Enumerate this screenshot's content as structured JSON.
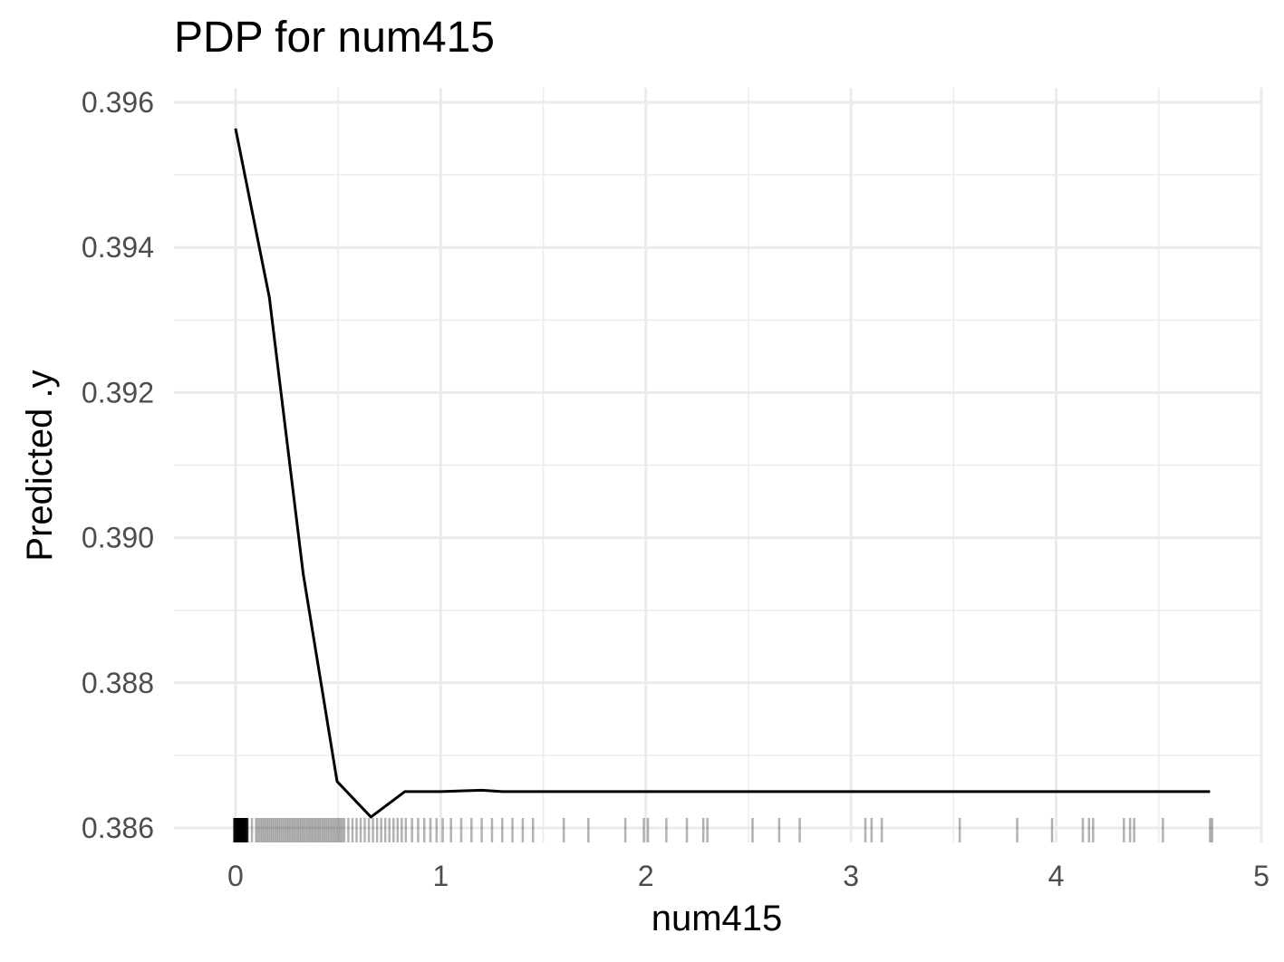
{
  "chart_data": {
    "type": "line",
    "title": "PDP for num415",
    "xlabel": "num415",
    "ylabel": "Predicted .y",
    "xlim": [
      -0.3,
      5.0
    ],
    "ylim": [
      0.3858,
      0.3962
    ],
    "x_ticks": [
      0,
      1,
      2,
      3,
      4,
      5
    ],
    "x_tick_labels": [
      "0",
      "1",
      "2",
      "3",
      "4",
      "5"
    ],
    "y_ticks": [
      0.386,
      0.388,
      0.39,
      0.392,
      0.394,
      0.396
    ],
    "y_tick_labels": [
      "0.386",
      "0.388",
      "0.390",
      "0.392",
      "0.394",
      "0.396"
    ],
    "grid": true,
    "series": [
      {
        "color": "#000000",
        "x": [
          0,
          0.165,
          0.33,
          0.495,
          0.66,
          0.825,
          1.0,
          1.2,
          1.3,
          1.5,
          2.0,
          2.5,
          3.0,
          3.5,
          4.0,
          4.5,
          4.75
        ],
        "y": [
          0.39564,
          0.39331,
          0.3895,
          0.38664,
          0.38615,
          0.3865,
          0.3865,
          0.38652,
          0.3865,
          0.3865,
          0.3865,
          0.3865,
          0.3865,
          0.3865,
          0.3865,
          0.3865,
          0.3865
        ]
      }
    ],
    "rug": {
      "color": "#000000",
      "values": [
        0,
        0.01,
        0.02,
        0.03,
        0.04,
        0.05,
        0.06,
        0.08,
        0.1,
        0.11,
        0.12,
        0.13,
        0.14,
        0.15,
        0.16,
        0.17,
        0.18,
        0.19,
        0.2,
        0.21,
        0.22,
        0.23,
        0.24,
        0.25,
        0.26,
        0.27,
        0.28,
        0.29,
        0.3,
        0.31,
        0.32,
        0.33,
        0.34,
        0.35,
        0.36,
        0.37,
        0.38,
        0.39,
        0.4,
        0.41,
        0.42,
        0.43,
        0.44,
        0.45,
        0.46,
        0.47,
        0.48,
        0.49,
        0.5,
        0.51,
        0.52,
        0.53,
        0.55,
        0.57,
        0.59,
        0.61,
        0.63,
        0.65,
        0.67,
        0.69,
        0.71,
        0.73,
        0.75,
        0.77,
        0.79,
        0.81,
        0.83,
        0.86,
        0.89,
        0.92,
        0.95,
        0.98,
        1.01,
        1.05,
        1.1,
        1.15,
        1.2,
        1.25,
        1.3,
        1.35,
        1.4,
        1.45,
        1.6,
        1.72,
        1.9,
        1.99,
        2.01,
        2.1,
        2.2,
        2.28,
        2.3,
        2.52,
        2.65,
        2.75,
        3.07,
        3.1,
        3.15,
        3.53,
        3.81,
        3.98,
        4.13,
        4.16,
        4.18,
        4.33,
        4.36,
        4.38,
        4.52,
        4.75,
        4.76
      ]
    }
  }
}
